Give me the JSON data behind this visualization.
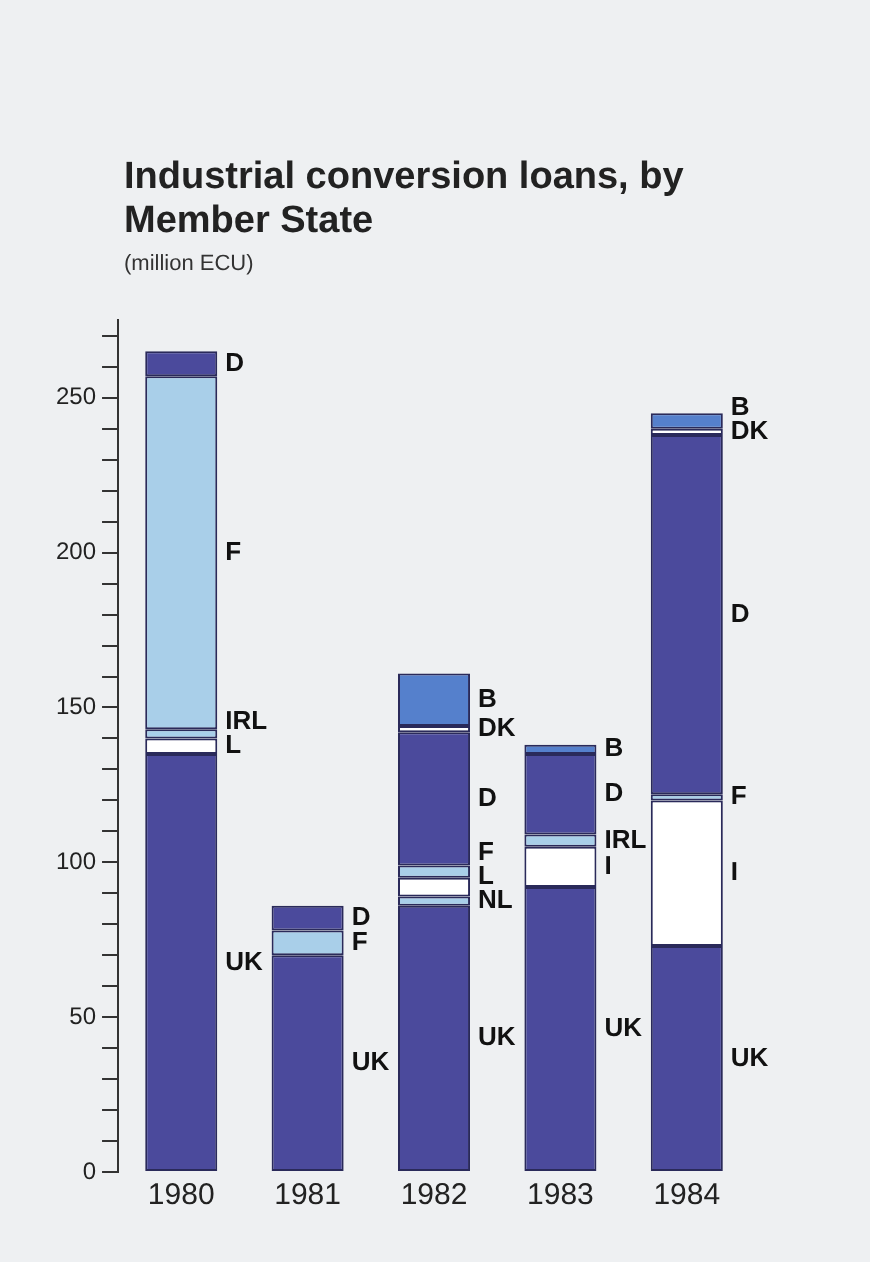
{
  "chart_data": {
    "type": "bar",
    "title": "Industrial conversion loans, by Member State",
    "subtitle": "(million ECU)",
    "categories": [
      "1980",
      "1981",
      "1982",
      "1983",
      "1984"
    ],
    "stacked": true,
    "legend": false,
    "grid": false,
    "ylim": [
      0,
      275
    ],
    "yticks": [
      0,
      {
        "value": 10,
        "label": null
      },
      {
        "value": 20,
        "label": null
      },
      {
        "value": 30,
        "label": null
      },
      {
        "value": 40,
        "label": null
      },
      50,
      {
        "value": 60,
        "label": null
      },
      {
        "value": 70,
        "label": null
      },
      {
        "value": 80,
        "label": null
      },
      {
        "value": 90,
        "label": null
      },
      100,
      {
        "value": 110,
        "label": null
      },
      {
        "value": 120,
        "label": null
      },
      {
        "value": 130,
        "label": null
      },
      {
        "value": 140,
        "label": null
      },
      150,
      {
        "value": 160,
        "label": null
      },
      {
        "value": 170,
        "label": null
      },
      {
        "value": 180,
        "label": null
      },
      {
        "value": 190,
        "label": null
      },
      200,
      {
        "value": 210,
        "label": null
      },
      {
        "value": 220,
        "label": null
      },
      {
        "value": 230,
        "label": null
      },
      {
        "value": 240,
        "label": null
      },
      250,
      {
        "value": 260,
        "label": null
      },
      {
        "value": 270,
        "label": null
      }
    ],
    "series": [
      {
        "name": "UK",
        "color": "#4b4a9c",
        "values": [
          135,
          70,
          86,
          92,
          73
        ]
      },
      {
        "name": "NL",
        "color": "#a9cfe9",
        "values": [
          null,
          null,
          3,
          null,
          null
        ]
      },
      {
        "name": "L",
        "color": "#ffffff",
        "values": [
          5,
          null,
          6,
          null,
          null
        ]
      },
      {
        "name": "I",
        "color": "#ffffff",
        "values": [
          null,
          null,
          null,
          13,
          47
        ]
      },
      {
        "name": "IRL",
        "color": "#a9cfe9",
        "values": [
          3,
          null,
          null,
          4,
          null
        ]
      },
      {
        "name": "F",
        "color": "#a9cfe9",
        "values": [
          114,
          8,
          4,
          null,
          2
        ]
      },
      {
        "name": "D",
        "color": "#4b4a9c",
        "values": [
          8,
          8,
          43,
          26,
          116
        ]
      },
      {
        "name": "DK",
        "color": "#ffffff",
        "values": [
          null,
          null,
          2,
          null,
          2
        ]
      },
      {
        "name": "B",
        "color": "#5580cc",
        "values": [
          null,
          null,
          17,
          3,
          5
        ]
      }
    ]
  }
}
